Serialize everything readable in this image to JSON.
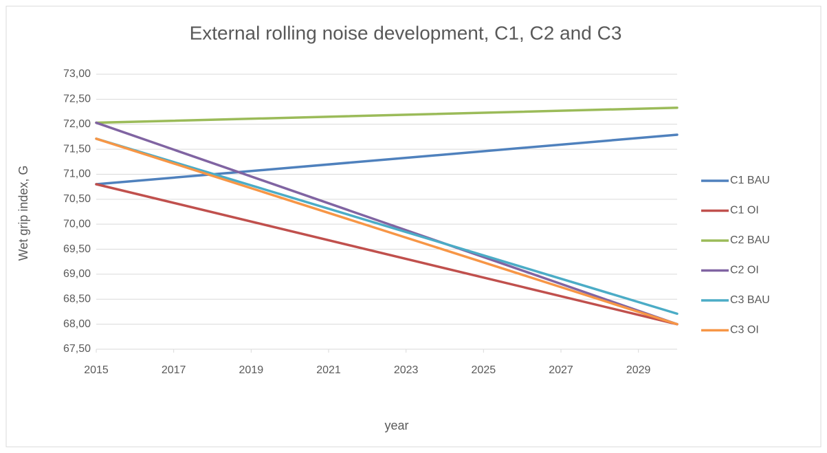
{
  "chart_data": {
    "type": "line",
    "title": "External rolling noise development, C1, C2 and C3",
    "x_label": "year",
    "y_label": "Wet grip index, G",
    "x": [
      2015,
      2030
    ],
    "series": [
      {
        "name": "C1 BAU",
        "color": "#4f81bd",
        "values": [
          70.8,
          71.79
        ]
      },
      {
        "name": "C1 OI",
        "color": "#c0504d",
        "values": [
          70.8,
          68.0
        ]
      },
      {
        "name": "C2 BAU",
        "color": "#9bbb59",
        "values": [
          72.03,
          72.33
        ]
      },
      {
        "name": "C2 OI",
        "color": "#8064a2",
        "values": [
          72.03,
          68.0
        ]
      },
      {
        "name": "C3 BAU",
        "color": "#4bacc6",
        "values": [
          71.71,
          68.21
        ]
      },
      {
        "name": "C3 OI",
        "color": "#f79646",
        "values": [
          71.71,
          68.0
        ]
      }
    ],
    "xlim": [
      2015,
      2030
    ],
    "xticks": [
      2015,
      2017,
      2019,
      2021,
      2023,
      2025,
      2027,
      2029
    ],
    "ylim": [
      67.5,
      73
    ],
    "yticks": [
      {
        "value": 67.5,
        "label": "67,50"
      },
      {
        "value": 68,
        "label": "68,00"
      },
      {
        "value": 68.5,
        "label": "68,50"
      },
      {
        "value": 69,
        "label": "69,00"
      },
      {
        "value": 69.5,
        "label": "69,50"
      },
      {
        "value": 70,
        "label": "70,00"
      },
      {
        "value": 70.5,
        "label": "70,50"
      },
      {
        "value": 71,
        "label": "71,00"
      },
      {
        "value": 71.5,
        "label": "71,50"
      },
      {
        "value": 72,
        "label": "72,00"
      },
      {
        "value": 72.5,
        "label": "72,50"
      },
      {
        "value": 73,
        "label": "73,00"
      }
    ],
    "grid": true,
    "legend": "right"
  }
}
